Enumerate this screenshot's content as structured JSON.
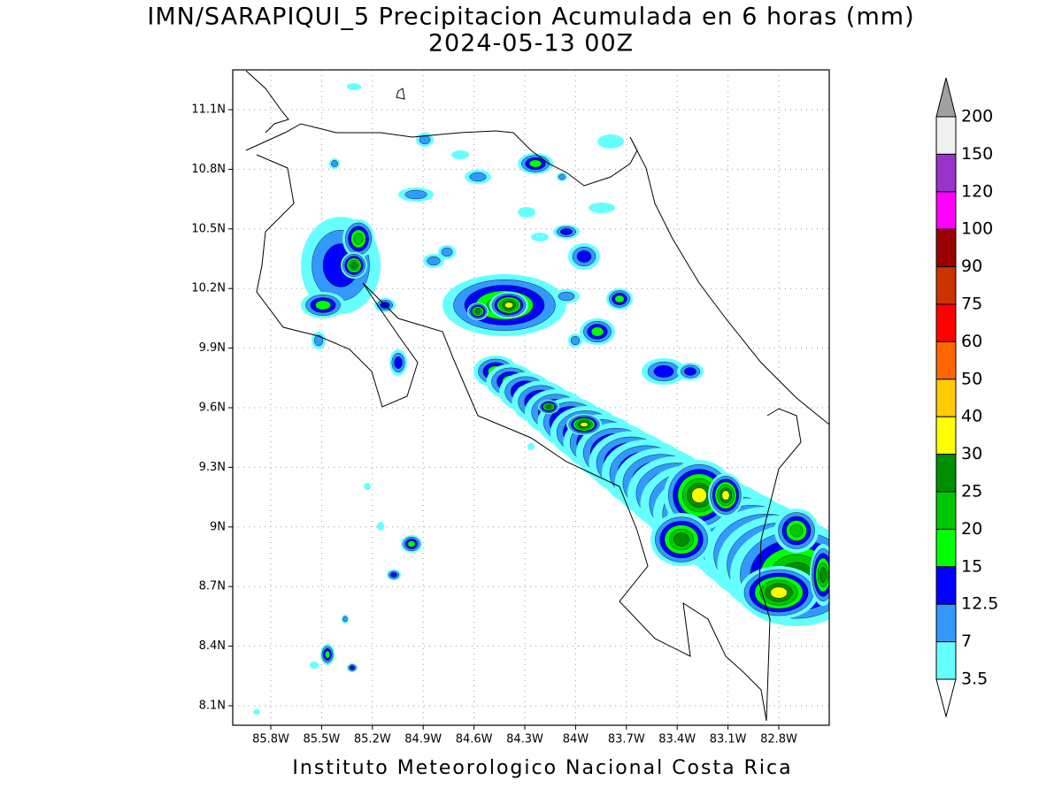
{
  "header": {
    "title": "IMN/SARAPIQUI_5 Precipitacion Acumulada en 6 horas (mm)",
    "subtitle": "2024-05-13 00Z"
  },
  "map": {
    "lon_ticks": [
      "85.8W",
      "85.5W",
      "85.2W",
      "84.9W",
      "84.6W",
      "84.3W",
      "84W",
      "83.7W",
      "83.4W",
      "83.1W",
      "82.8W"
    ],
    "lat_ticks": [
      "11.1N",
      "10.8N",
      "10.5N",
      "10.2N",
      "9.9N",
      "9.6N",
      "9.3N",
      "9N",
      "8.7N",
      "8.4N",
      "8.1N"
    ]
  },
  "colorbar": {
    "levels": [
      200,
      150,
      120,
      100,
      90,
      75,
      60,
      50,
      40,
      30,
      25,
      20,
      15,
      12.5,
      7,
      3.5
    ],
    "colors": [
      "#a0a0a0",
      "#f0f0f0",
      "#9933cc",
      "#ff00ff",
      "#990000",
      "#cc3300",
      "#ff0000",
      "#ff6600",
      "#ffcc00",
      "#ffff00",
      "#008f00",
      "#00c800",
      "#00ff00",
      "#0000ff",
      "#3399ff",
      "#66ffff",
      "#ffffff"
    ]
  },
  "footer": "Instituto Meteorologico Nacional Costa Rica"
}
